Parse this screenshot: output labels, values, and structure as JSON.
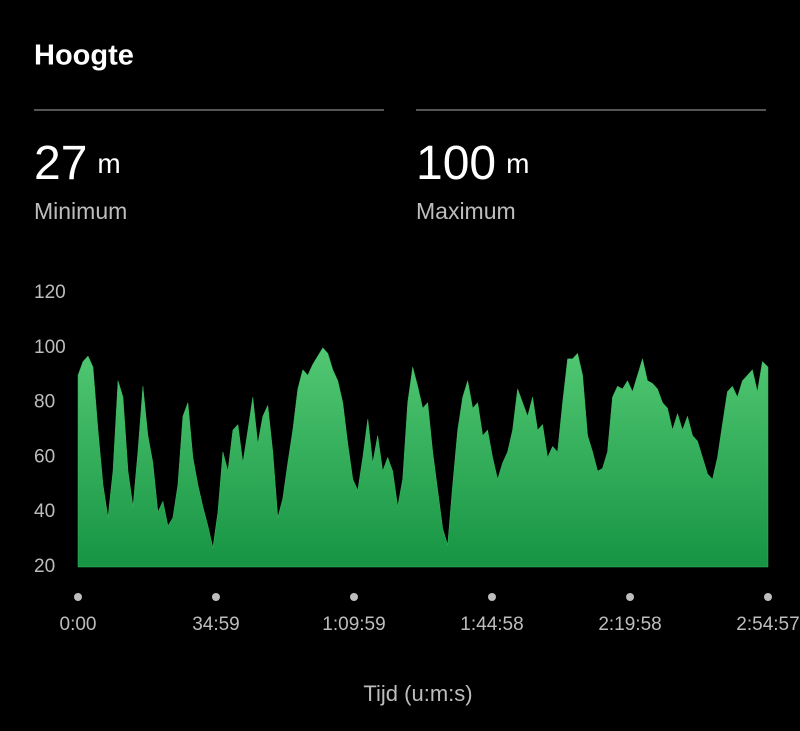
{
  "header": {
    "title": "Hoogte"
  },
  "stats": [
    {
      "value": 27,
      "unit": "m",
      "label": "Minimum"
    },
    {
      "value": 100,
      "unit": "m",
      "label": "Maximum"
    }
  ],
  "chart_data": {
    "type": "area",
    "color": "#3cb95e",
    "grid": false,
    "x_label": "Tijd (u:m:s)",
    "xlim": [
      0,
      10497
    ],
    "xticks": [
      {
        "value": 0,
        "label": "0:00"
      },
      {
        "value": 2099,
        "label": "34:59"
      },
      {
        "value": 4199,
        "label": "1:09:59"
      },
      {
        "value": 6298,
        "label": "1:44:58"
      },
      {
        "value": 8398,
        "label": "2:19:58"
      },
      {
        "value": 10497,
        "label": "2:54:57"
      }
    ],
    "ylim": [
      20,
      120
    ],
    "yticks": [
      20,
      40,
      60,
      80,
      100,
      120
    ],
    "x": [
      0,
      76,
      152,
      228,
      304,
      380,
      456,
      532,
      608,
      684,
      760,
      836,
      912,
      988,
      1064,
      1140,
      1216,
      1292,
      1368,
      1444,
      1520,
      1596,
      1672,
      1748,
      1824,
      1900,
      1976,
      2052,
      2128,
      2204,
      2280,
      2356,
      2432,
      2508,
      2584,
      2660,
      2736,
      2812,
      2888,
      2964,
      3040,
      3116,
      3192,
      3268,
      3344,
      3420,
      3496,
      3572,
      3648,
      3724,
      3800,
      3876,
      3952,
      4028,
      4104,
      4180,
      4256,
      4332,
      4408,
      4484,
      4560,
      4636,
      4712,
      4788,
      4864,
      4940,
      5016,
      5092,
      5168,
      5244,
      5320,
      5396,
      5472,
      5548,
      5624,
      5700,
      5776,
      5852,
      5928,
      6004,
      6080,
      6156,
      6232,
      6308,
      6384,
      6460,
      6536,
      6612,
      6688,
      6764,
      6840,
      6916,
      6992,
      7068,
      7144,
      7220,
      7296,
      7372,
      7448,
      7524,
      7600,
      7676,
      7752,
      7828,
      7904,
      7980,
      8056,
      8132,
      8208,
      8284,
      8360,
      8436,
      8512,
      8588,
      8664,
      8740,
      8816,
      8892,
      8968,
      9044,
      9120,
      9196,
      9272,
      9348,
      9424,
      9500,
      9576,
      9652,
      9728,
      9804,
      9880,
      9956,
      10032,
      10108,
      10184,
      10260,
      10336,
      10412,
      10497
    ],
    "values": [
      90,
      95,
      97,
      93,
      70,
      50,
      38,
      55,
      88,
      82,
      55,
      42,
      62,
      86,
      68,
      58,
      40,
      44,
      35,
      38,
      50,
      75,
      80,
      60,
      50,
      42,
      35,
      27,
      40,
      62,
      55,
      70,
      72,
      58,
      70,
      82,
      65,
      75,
      79,
      62,
      38,
      45,
      58,
      70,
      85,
      92,
      90,
      94,
      97,
      100,
      98,
      92,
      88,
      80,
      65,
      52,
      48,
      60,
      74,
      58,
      68,
      55,
      60,
      55,
      42,
      52,
      80,
      93,
      86,
      78,
      80,
      62,
      48,
      34,
      28,
      50,
      70,
      82,
      88,
      78,
      80,
      68,
      70,
      60,
      52,
      58,
      62,
      70,
      85,
      80,
      75,
      82,
      70,
      72,
      60,
      64,
      62,
      80,
      96,
      96,
      98,
      90,
      68,
      62,
      55,
      56,
      62,
      82,
      86,
      85,
      88,
      84,
      90,
      96,
      88,
      87,
      85,
      80,
      78,
      70,
      76,
      70,
      75,
      68,
      66,
      60,
      54,
      52,
      60,
      72,
      84,
      86,
      82,
      88,
      90,
      92,
      84,
      95,
      93
    ]
  }
}
